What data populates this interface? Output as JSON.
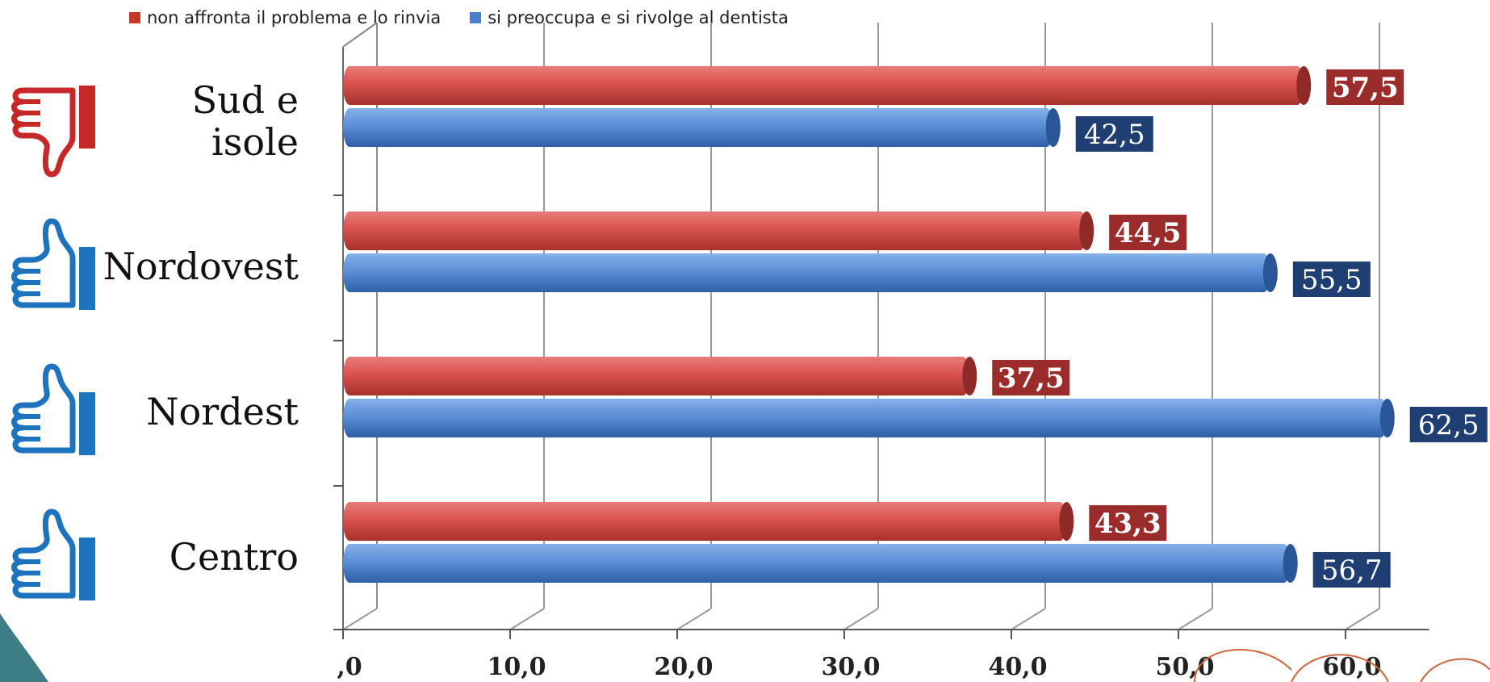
{
  "legend": [
    {
      "label": "non affronta il problema e lo rinvia",
      "color": "#c0392b"
    },
    {
      "label": "si preoccupa e si rivolge al dentista",
      "color": "#4a7fc8"
    }
  ],
  "categories": [
    {
      "label": "Sud e\nisole",
      "icon": "thumbs-down-icon",
      "icon_color": "#c62828"
    },
    {
      "label": "Nordovest",
      "icon": "thumbs-up-icon",
      "icon_color": "#1e73be"
    },
    {
      "label": "Nordest",
      "icon": "thumbs-up-icon",
      "icon_color": "#1e73be"
    },
    {
      "label": "Centro",
      "icon": "thumbs-up-icon",
      "icon_color": "#1e73be"
    }
  ],
  "chart_data": {
    "type": "bar",
    "orientation": "horizontal",
    "categories": [
      "Sud e isole",
      "Nordovest",
      "Nordest",
      "Centro"
    ],
    "series": [
      {
        "name": "non affronta il problema e lo rinvia",
        "values": [
          57.5,
          44.5,
          37.5,
          43.3
        ],
        "labels": [
          "57,5",
          "44,5",
          "37,5",
          "43,3"
        ],
        "color": "#d9534f",
        "label_bg": "#9b2c2c"
      },
      {
        "name": "si preoccupa e si rivolge al dentista",
        "values": [
          42.5,
          55.5,
          62.5,
          56.7
        ],
        "labels": [
          "42,5",
          "55,5",
          "62,5",
          "56,7"
        ],
        "color": "#5b8fd6",
        "label_bg": "#1f3f73"
      }
    ],
    "xlim": [
      0,
      65
    ],
    "xticks": [
      0,
      10,
      20,
      30,
      40,
      50,
      60
    ],
    "xtick_labels": [
      ",0",
      "10,0",
      "20,0",
      "30,0",
      "40,0",
      "50,0",
      "60,0"
    ],
    "grid": true,
    "legend_position": "top-left"
  }
}
